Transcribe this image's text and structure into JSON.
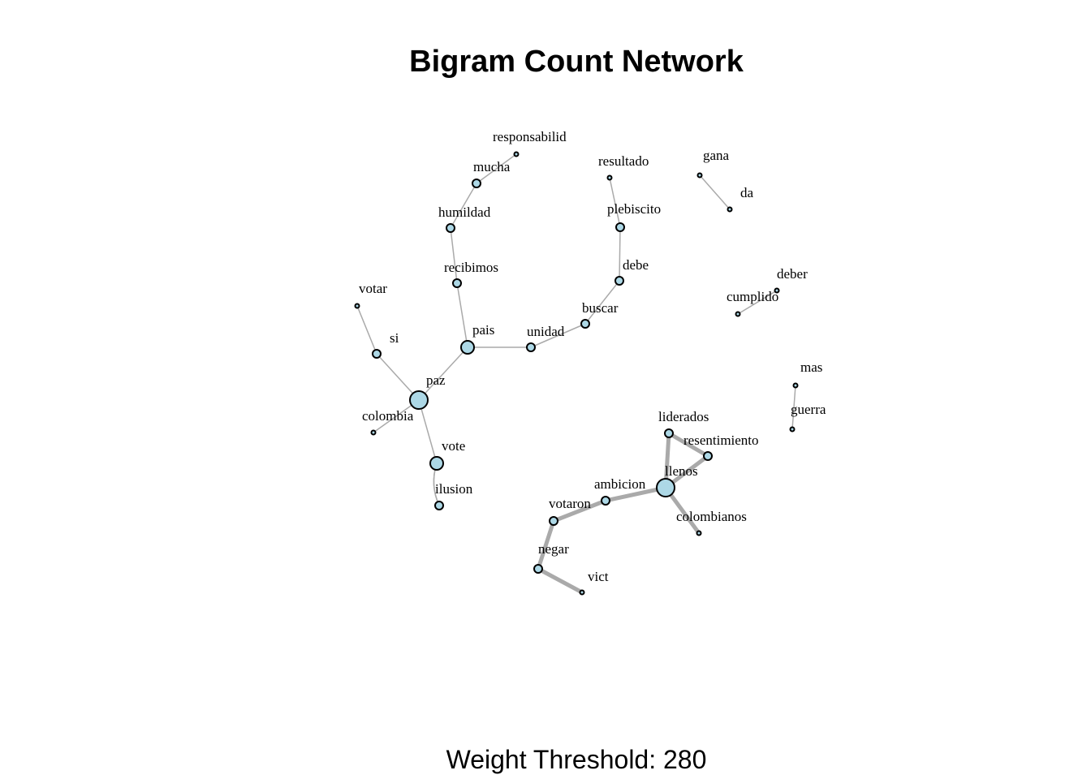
{
  "title": "Bigram Count Network",
  "subtitle": "Weight Threshold: 280",
  "colors": {
    "node_fill": "#add8e6",
    "node_stroke": "#000000",
    "edge": "#aaaaaa",
    "background": "#ffffff"
  },
  "nodes": [
    {
      "id": "responsabilid",
      "label": "responsabilid",
      "degree": 1
    },
    {
      "id": "mucha",
      "label": "mucha",
      "degree": 2
    },
    {
      "id": "humildad",
      "label": "humildad",
      "degree": 2
    },
    {
      "id": "recibimos",
      "label": "recibimos",
      "degree": 2
    },
    {
      "id": "pais",
      "label": "pais",
      "degree": 3
    },
    {
      "id": "unidad",
      "label": "unidad",
      "degree": 2
    },
    {
      "id": "buscar",
      "label": "buscar",
      "degree": 2
    },
    {
      "id": "debe",
      "label": "debe",
      "degree": 2
    },
    {
      "id": "plebiscito",
      "label": "plebiscito",
      "degree": 2
    },
    {
      "id": "resultado",
      "label": "resultado",
      "degree": 1
    },
    {
      "id": "gana",
      "label": "gana",
      "degree": 1
    },
    {
      "id": "da",
      "label": "da",
      "degree": 1
    },
    {
      "id": "deber",
      "label": "deber",
      "degree": 1
    },
    {
      "id": "cumplido",
      "label": "cumplido",
      "degree": 1
    },
    {
      "id": "votar",
      "label": "votar",
      "degree": 1
    },
    {
      "id": "si",
      "label": "si",
      "degree": 2
    },
    {
      "id": "paz",
      "label": "paz",
      "degree": 4
    },
    {
      "id": "colombia",
      "label": "colombia",
      "degree": 1
    },
    {
      "id": "vote",
      "label": "vote",
      "degree": 3
    },
    {
      "id": "ilusion",
      "label": "ilusion",
      "degree": 2
    },
    {
      "id": "mas",
      "label": "mas",
      "degree": 1
    },
    {
      "id": "guerra",
      "label": "guerra",
      "degree": 1
    },
    {
      "id": "liderados",
      "label": "liderados",
      "degree": 2
    },
    {
      "id": "resentimiento",
      "label": "resentimiento",
      "degree": 2
    },
    {
      "id": "llenos",
      "label": "llenos",
      "degree": 4
    },
    {
      "id": "ambicion",
      "label": "ambicion",
      "degree": 2
    },
    {
      "id": "colombianos",
      "label": "colombianos",
      "degree": 1
    },
    {
      "id": "votaron",
      "label": "votaron",
      "degree": 2
    },
    {
      "id": "negar",
      "label": "negar",
      "degree": 2
    },
    {
      "id": "vict",
      "label": "vict",
      "degree": 1
    }
  ],
  "edges": [
    {
      "from": "responsabilid",
      "to": "mucha",
      "weight": "low"
    },
    {
      "from": "mucha",
      "to": "humildad",
      "weight": "low"
    },
    {
      "from": "humildad",
      "to": "recibimos",
      "weight": "low"
    },
    {
      "from": "recibimos",
      "to": "pais",
      "weight": "low"
    },
    {
      "from": "pais",
      "to": "unidad",
      "weight": "low"
    },
    {
      "from": "unidad",
      "to": "buscar",
      "weight": "low"
    },
    {
      "from": "buscar",
      "to": "debe",
      "weight": "low"
    },
    {
      "from": "debe",
      "to": "plebiscito",
      "weight": "low"
    },
    {
      "from": "plebiscito",
      "to": "resultado",
      "weight": "low"
    },
    {
      "from": "gana",
      "to": "da",
      "weight": "low"
    },
    {
      "from": "deber",
      "to": "cumplido",
      "weight": "low"
    },
    {
      "from": "votar",
      "to": "si",
      "weight": "low"
    },
    {
      "from": "si",
      "to": "paz",
      "weight": "low"
    },
    {
      "from": "paz",
      "to": "pais",
      "weight": "low"
    },
    {
      "from": "paz",
      "to": "colombia",
      "weight": "low"
    },
    {
      "from": "paz",
      "to": "vote",
      "weight": "low"
    },
    {
      "from": "vote",
      "to": "ilusion",
      "weight": "low",
      "curve": 1
    },
    {
      "from": "ilusion",
      "to": "vote",
      "weight": "low",
      "curve": -1
    },
    {
      "from": "mas",
      "to": "guerra",
      "weight": "low"
    },
    {
      "from": "liderados",
      "to": "resentimiento",
      "weight": "high"
    },
    {
      "from": "liderados",
      "to": "llenos",
      "weight": "high"
    },
    {
      "from": "resentimiento",
      "to": "llenos",
      "weight": "high"
    },
    {
      "from": "llenos",
      "to": "colombianos",
      "weight": "high"
    },
    {
      "from": "llenos",
      "to": "ambicion",
      "weight": "high"
    },
    {
      "from": "ambicion",
      "to": "votaron",
      "weight": "high"
    },
    {
      "from": "votaron",
      "to": "negar",
      "weight": "high"
    },
    {
      "from": "negar",
      "to": "vict",
      "weight": "high"
    }
  ]
}
